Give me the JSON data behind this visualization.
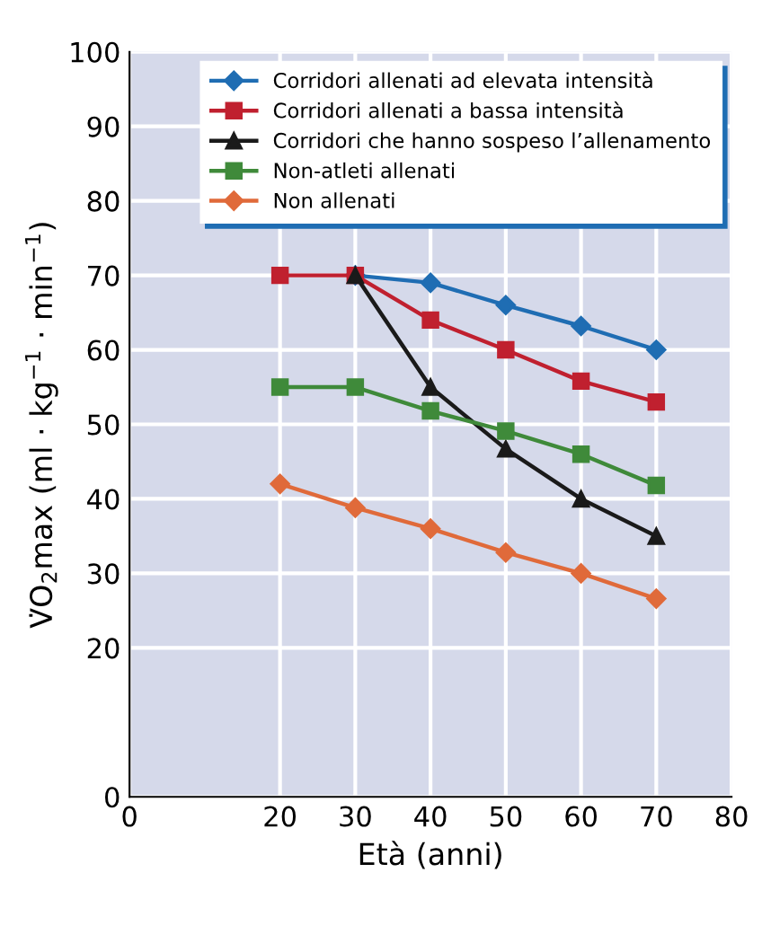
{
  "chart_data": {
    "type": "line",
    "xlabel": "Età (anni)",
    "ylabel": "V̇O$_{2}$max (ml · kg$^{−1}$ · min$^{−1}$)",
    "xlim": [
      0,
      80
    ],
    "xticks": [
      0,
      20,
      30,
      40,
      50,
      60,
      70,
      80
    ],
    "ylim": [
      0,
      100
    ],
    "yticks": [
      0,
      20,
      30,
      40,
      50,
      60,
      70,
      80,
      90,
      100
    ],
    "grid": true,
    "legend": "top right",
    "series": [
      {
        "name": "Corridori allenati ad elevata intensità",
        "color": "#1f6db3",
        "marker": "diamond",
        "x": [
          30,
          40,
          50,
          60,
          70
        ],
        "values": [
          70,
          69,
          66,
          63.2,
          60
        ]
      },
      {
        "name": "Corridori allenati a bassa intensità",
        "color": "#c0202f",
        "marker": "square",
        "x": [
          20,
          30,
          40,
          50,
          60,
          70
        ],
        "values": [
          70,
          70,
          64,
          60,
          55.8,
          53
        ]
      },
      {
        "name": "Corridori che hanno sospeso l’allenamento",
        "color": "#1a1a1a",
        "marker": "triangle",
        "x": [
          30,
          40,
          50,
          60,
          70
        ],
        "values": [
          70,
          55,
          46.7,
          40,
          35
        ]
      },
      {
        "name": "Non-atleti allenati",
        "color": "#3f8a3a",
        "marker": "square",
        "x": [
          20,
          30,
          40,
          50,
          60,
          70
        ],
        "values": [
          55,
          55,
          51.8,
          49.1,
          46,
          41.8
        ]
      },
      {
        "name": "Non allenati",
        "color": "#e06a3a",
        "marker": "diamond",
        "x": [
          20,
          30,
          40,
          50,
          60,
          70
        ],
        "values": [
          42,
          38.8,
          36,
          32.8,
          30,
          26.6
        ]
      }
    ]
  }
}
